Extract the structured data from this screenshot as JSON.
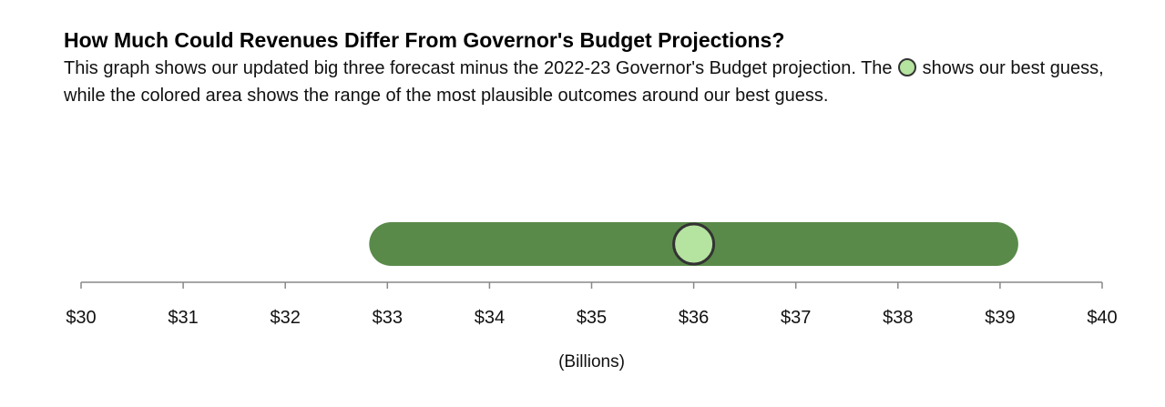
{
  "header": {
    "title": "How Much Could Revenues Differ From Governor's Budget Projections?",
    "subtitle_part1": "This graph shows our updated big three forecast minus the 2022-23 Governor's Budget projection. The",
    "subtitle_part2": "shows our best guess, while the colored area shows the range of the most plausible outcomes around our best guess."
  },
  "chart_data": {
    "type": "range",
    "title": "How Much Could Revenues Differ From Governor's Budget Projections?",
    "xlabel": "(Billions)",
    "xlim": [
      30,
      40
    ],
    "ticks": [
      30,
      31,
      32,
      33,
      34,
      35,
      36,
      37,
      38,
      39,
      40
    ],
    "tick_labels": [
      "$30",
      "$31",
      "$32",
      "$33",
      "$34",
      "$35",
      "$36",
      "$37",
      "$38",
      "$39",
      "$40"
    ],
    "range_low": 33,
    "range_high": 39,
    "best_guess": 36,
    "colors": {
      "range": "#5a8a4a",
      "best_guess_fill": "#b5e3a0",
      "best_guess_stroke": "#333333",
      "axis": "#888888"
    }
  }
}
